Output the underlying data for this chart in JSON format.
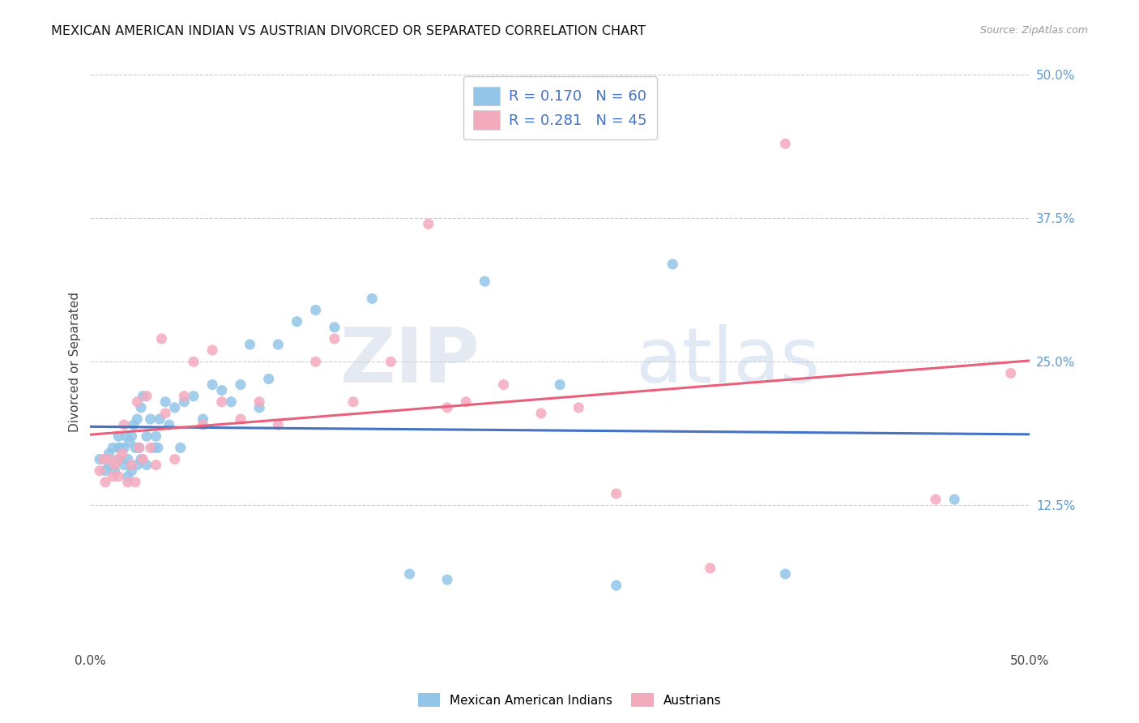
{
  "title": "MEXICAN AMERICAN INDIAN VS AUSTRIAN DIVORCED OR SEPARATED CORRELATION CHART",
  "source": "Source: ZipAtlas.com",
  "ylabel": "Divorced or Separated",
  "xmin": 0.0,
  "xmax": 0.5,
  "ymin": 0.0,
  "ymax": 0.5,
  "yticks_right": [
    0.0,
    0.125,
    0.25,
    0.375,
    0.5
  ],
  "ytick_right_labels": [
    "",
    "12.5%",
    "25.0%",
    "37.5%",
    "50.0%"
  ],
  "blue_R": 0.17,
  "blue_N": 60,
  "pink_R": 0.281,
  "pink_N": 45,
  "blue_color": "#92C5E8",
  "pink_color": "#F4AABD",
  "blue_line_color": "#4472C4",
  "pink_line_color": "#E8607A",
  "legend_label_blue": "Mexican American Indians",
  "legend_label_pink": "Austrians",
  "watermark_zip": "ZIP",
  "watermark_atlas": "atlas",
  "blue_x": [
    0.005,
    0.008,
    0.01,
    0.01,
    0.012,
    0.013,
    0.015,
    0.015,
    0.015,
    0.016,
    0.018,
    0.018,
    0.019,
    0.02,
    0.02,
    0.021,
    0.022,
    0.022,
    0.023,
    0.024,
    0.025,
    0.025,
    0.026,
    0.027,
    0.027,
    0.028,
    0.03,
    0.03,
    0.032,
    0.034,
    0.035,
    0.036,
    0.037,
    0.04,
    0.042,
    0.045,
    0.048,
    0.05,
    0.055,
    0.06,
    0.065,
    0.07,
    0.075,
    0.08,
    0.085,
    0.09,
    0.095,
    0.1,
    0.11,
    0.12,
    0.13,
    0.15,
    0.17,
    0.19,
    0.21,
    0.25,
    0.28,
    0.31,
    0.37,
    0.46
  ],
  "blue_y": [
    0.165,
    0.155,
    0.17,
    0.16,
    0.175,
    0.155,
    0.165,
    0.175,
    0.185,
    0.175,
    0.16,
    0.175,
    0.185,
    0.15,
    0.165,
    0.18,
    0.185,
    0.155,
    0.195,
    0.175,
    0.16,
    0.2,
    0.175,
    0.165,
    0.21,
    0.22,
    0.16,
    0.185,
    0.2,
    0.175,
    0.185,
    0.175,
    0.2,
    0.215,
    0.195,
    0.21,
    0.175,
    0.215,
    0.22,
    0.2,
    0.23,
    0.225,
    0.215,
    0.23,
    0.265,
    0.21,
    0.235,
    0.265,
    0.285,
    0.295,
    0.28,
    0.305,
    0.065,
    0.06,
    0.32,
    0.23,
    0.055,
    0.335,
    0.065,
    0.13
  ],
  "pink_x": [
    0.005,
    0.007,
    0.008,
    0.01,
    0.012,
    0.013,
    0.015,
    0.015,
    0.017,
    0.018,
    0.02,
    0.022,
    0.024,
    0.025,
    0.026,
    0.028,
    0.03,
    0.032,
    0.035,
    0.038,
    0.04,
    0.045,
    0.05,
    0.055,
    0.06,
    0.065,
    0.07,
    0.08,
    0.09,
    0.1,
    0.12,
    0.13,
    0.14,
    0.16,
    0.18,
    0.19,
    0.2,
    0.22,
    0.24,
    0.26,
    0.28,
    0.33,
    0.37,
    0.45,
    0.49
  ],
  "pink_y": [
    0.155,
    0.165,
    0.145,
    0.165,
    0.15,
    0.16,
    0.15,
    0.165,
    0.17,
    0.195,
    0.145,
    0.16,
    0.145,
    0.215,
    0.175,
    0.165,
    0.22,
    0.175,
    0.16,
    0.27,
    0.205,
    0.165,
    0.22,
    0.25,
    0.195,
    0.26,
    0.215,
    0.2,
    0.215,
    0.195,
    0.25,
    0.27,
    0.215,
    0.25,
    0.37,
    0.21,
    0.215,
    0.23,
    0.205,
    0.21,
    0.135,
    0.07,
    0.44,
    0.13,
    0.24
  ]
}
